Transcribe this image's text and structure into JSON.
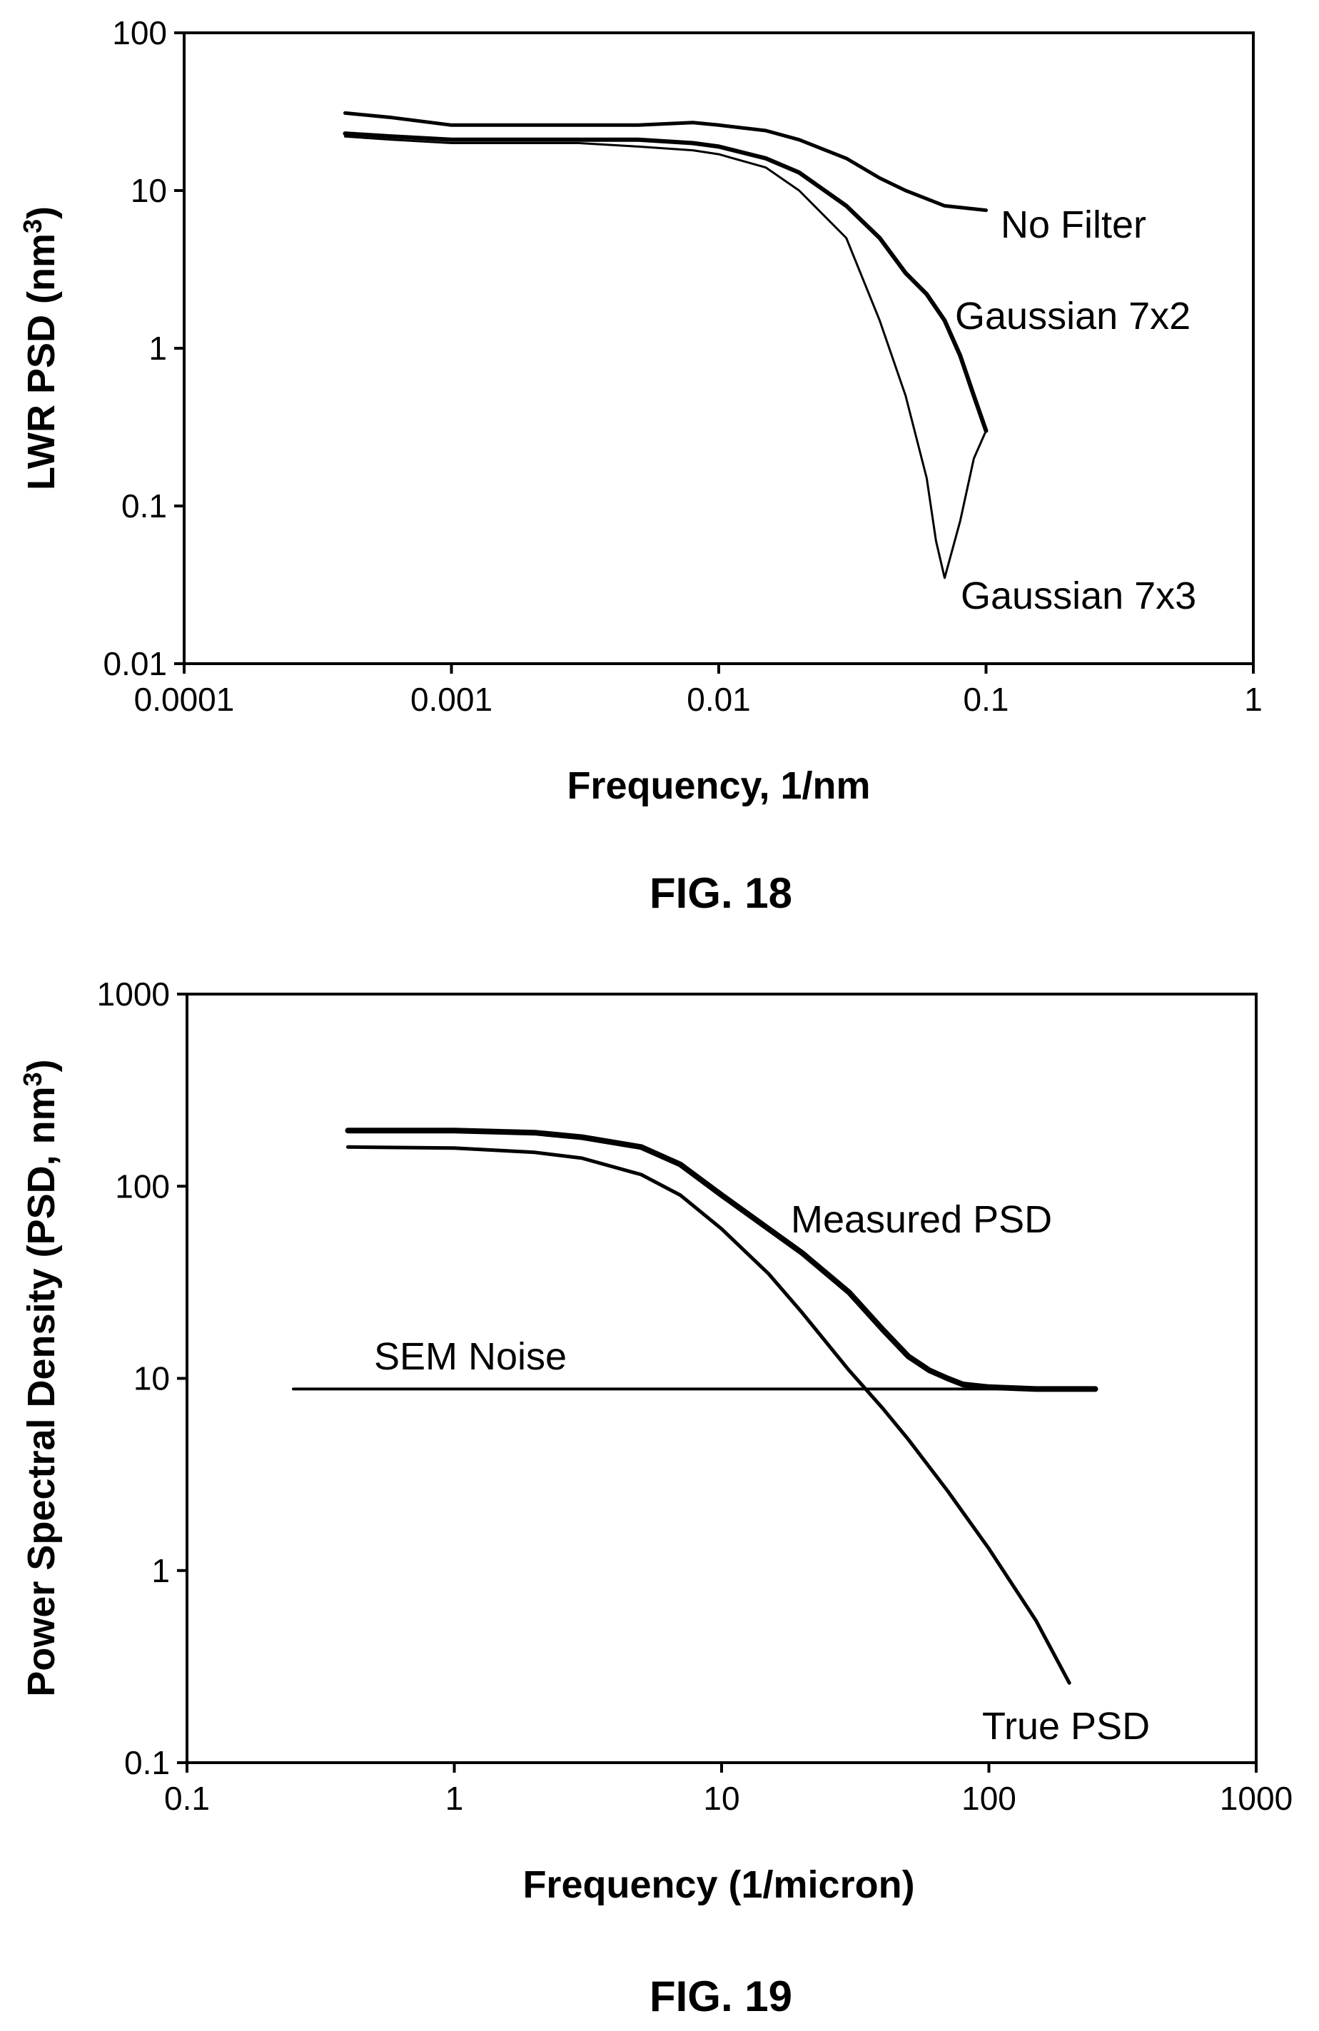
{
  "chart_data": [
    {
      "type": "line",
      "figure_label": "FIG. 18",
      "xlabel": "Frequency, 1/nm",
      "ylabel": "LWR PSD (nm",
      "ylabel_sup": "3",
      "ylabel_end": ")",
      "xscale": "log",
      "yscale": "log",
      "xlim": [
        0.0001,
        1
      ],
      "ylim": [
        0.01,
        100
      ],
      "xticks": [
        0.0001,
        0.001,
        0.01,
        0.1,
        1
      ],
      "xtick_labels": [
        "0.0001",
        "0.001",
        "0.01",
        "0.1",
        "1"
      ],
      "yticks": [
        0.01,
        0.1,
        1,
        10,
        100
      ],
      "ytick_labels": [
        "0.01",
        "0.1",
        "1",
        "10",
        "100"
      ],
      "grid": false,
      "legend": "none",
      "series": [
        {
          "name": "No Filter",
          "color": "#000000",
          "x": [
            0.0004,
            0.0006,
            0.001,
            0.002,
            0.003,
            0.005,
            0.008,
            0.01,
            0.015,
            0.02,
            0.03,
            0.04,
            0.05,
            0.07,
            0.1
          ],
          "y": [
            31,
            29,
            26,
            26,
            26,
            26,
            27,
            26,
            24,
            21,
            16,
            12,
            10,
            8,
            7.5
          ]
        },
        {
          "name": "Gaussian 7x2",
          "color": "#000000",
          "x": [
            0.0004,
            0.0006,
            0.001,
            0.002,
            0.003,
            0.005,
            0.008,
            0.01,
            0.015,
            0.02,
            0.03,
            0.04,
            0.05,
            0.06,
            0.07,
            0.08,
            0.09,
            0.1
          ],
          "y": [
            23,
            22,
            21,
            21,
            21,
            21,
            20,
            19,
            16,
            13,
            8,
            5,
            3,
            2.2,
            1.5,
            0.9,
            0.5,
            0.3
          ]
        },
        {
          "name": "Gaussian 7x3",
          "color": "#000000",
          "x": [
            0.0004,
            0.0006,
            0.001,
            0.002,
            0.003,
            0.005,
            0.008,
            0.01,
            0.015,
            0.02,
            0.03,
            0.04,
            0.05,
            0.06,
            0.065,
            0.07,
            0.08,
            0.09,
            0.1
          ],
          "y": [
            22,
            21,
            20,
            20,
            20,
            19,
            18,
            17,
            14,
            10,
            5,
            1.5,
            0.5,
            0.15,
            0.06,
            0.035,
            0.08,
            0.2,
            0.3
          ]
        }
      ],
      "annotations": [
        "No Filter",
        "Gaussian 7x2",
        "Gaussian 7x3"
      ]
    },
    {
      "type": "line",
      "figure_label": "FIG. 19",
      "xlabel": "Frequency (1/micron)",
      "ylabel": "Power Spectral Density (PSD, nm",
      "ylabel_sup": "3",
      "ylabel_end": ")",
      "xscale": "log",
      "yscale": "log",
      "xlim": [
        0.1,
        1000
      ],
      "ylim": [
        0.1,
        1000
      ],
      "xticks": [
        0.1,
        1,
        10,
        100,
        1000
      ],
      "xtick_labels": [
        "0.1",
        "1",
        "10",
        "100",
        "1000"
      ],
      "yticks": [
        0.1,
        1,
        10,
        100,
        1000
      ],
      "ytick_labels": [
        "0.1",
        "1",
        "10",
        "100",
        "1000"
      ],
      "grid": false,
      "legend": "none",
      "series": [
        {
          "name": "Measured PSD",
          "color": "#000000",
          "x": [
            0.4,
            1,
            2,
            3,
            5,
            7,
            10,
            15,
            20,
            30,
            40,
            50,
            60,
            70,
            80,
            100,
            150,
            250
          ],
          "y": [
            195,
            195,
            190,
            180,
            160,
            130,
            90,
            60,
            45,
            28,
            18,
            13,
            11,
            10,
            9.3,
            9,
            8.8,
            8.8
          ]
        },
        {
          "name": "True PSD",
          "color": "#000000",
          "x": [
            0.4,
            1,
            2,
            3,
            5,
            7,
            10,
            15,
            20,
            30,
            40,
            50,
            70,
            100,
            150,
            200
          ],
          "y": [
            160,
            158,
            150,
            140,
            115,
            90,
            60,
            35,
            22,
            11,
            7,
            4.8,
            2.6,
            1.3,
            0.55,
            0.26
          ]
        },
        {
          "name": "SEM Noise",
          "color": "#000000",
          "x": [
            0.25,
            1,
            10,
            100,
            250
          ],
          "y": [
            8.8,
            8.8,
            8.8,
            8.8,
            8.8
          ]
        }
      ],
      "annotations": [
        "SEM Noise",
        "Measured PSD",
        "True PSD"
      ]
    }
  ]
}
